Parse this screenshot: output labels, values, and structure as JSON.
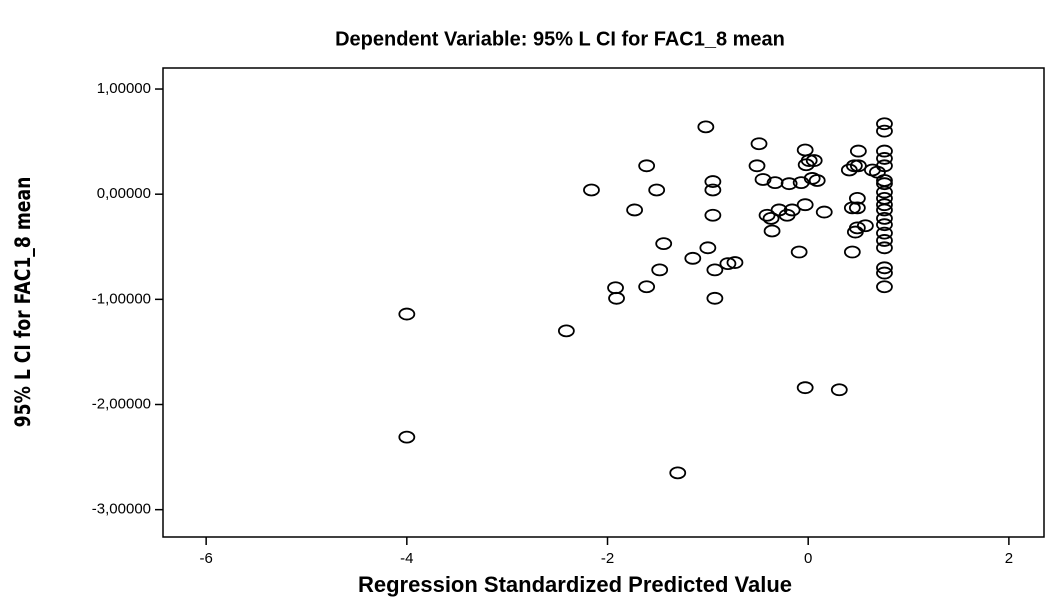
{
  "chart_data": {
    "type": "scatter",
    "title": "Dependent Variable: 95% L CI for FAC1_8 mean",
    "x_label": "Regression Standardized Predicted Value",
    "y_label": "95% L CI for FAC1_8 mean",
    "xlim": [
      -6.43,
      2.35
    ],
    "ylim": [
      -3.26,
      1.2
    ],
    "xticks": [
      -6,
      -4,
      -2,
      0,
      2
    ],
    "yticks": [
      {
        "value": 1,
        "label": "1,00000"
      },
      {
        "value": 0,
        "label": "0,00000"
      },
      {
        "value": -1,
        "label": "-1,00000"
      },
      {
        "value": -2,
        "label": "-2,00000"
      },
      {
        "value": -3,
        "label": "-3,00000"
      }
    ],
    "color": "#000000",
    "x": [
      -4,
      -4,
      -2.41,
      -2.16,
      -1.92,
      -1.91,
      -1.73,
      -1.61,
      -1.61,
      -1.51,
      -1.48,
      -1.44,
      -1.3,
      -1.15,
      -1.02,
      -1.0,
      -0.95,
      -0.95,
      -0.95,
      -0.93,
      -0.93,
      -0.8,
      -0.73,
      -0.49,
      -0.51,
      -0.45,
      -0.41,
      -0.37,
      -0.36,
      -0.33,
      -0.29,
      -0.21,
      -0.19,
      -0.16,
      -0.09,
      -0.07,
      -0.03,
      -0.03,
      -0.03,
      -0.02,
      0.01,
      0.06,
      0.04,
      0.09,
      0.16,
      0.31,
      0.41,
      0.46,
      0.44,
      0.44,
      0.47,
      0.49,
      0.49,
      0.49,
      0.5,
      0.5,
      0.57,
      0.64,
      0.69,
      0.76,
      0.76,
      0.76,
      0.76,
      0.76,
      0.76,
      0.76,
      0.76,
      0.76,
      0.76,
      0.76,
      0.76,
      0.76,
      0.76,
      0.76,
      0.76,
      0.76,
      0.76,
      0.76
    ],
    "values": [
      -1.14,
      -2.31,
      -1.3,
      0.04,
      -0.89,
      -0.99,
      -0.15,
      0.27,
      -0.88,
      0.04,
      -0.72,
      -0.47,
      -2.65,
      -0.61,
      0.64,
      -0.51,
      0.12,
      0.04,
      -0.2,
      -0.99,
      -0.72,
      -0.66,
      -0.65,
      0.48,
      0.27,
      0.14,
      -0.2,
      -0.23,
      -0.35,
      0.11,
      -0.15,
      -0.2,
      0.1,
      -0.15,
      -0.55,
      0.11,
      0.42,
      -1.84,
      -0.1,
      0.28,
      0.32,
      0.32,
      0.15,
      0.13,
      -0.17,
      -1.86,
      0.23,
      0.27,
      -0.55,
      -0.13,
      -0.36,
      -0.32,
      -0.13,
      -0.04,
      0.41,
      0.27,
      -0.3,
      0.23,
      0.21,
      0.67,
      0.6,
      0.41,
      0.34,
      0.27,
      0.13,
      0.1,
      0.02,
      -0.04,
      -0.1,
      -0.15,
      -0.23,
      -0.29,
      -0.37,
      -0.44,
      -0.51,
      -0.7,
      -0.75,
      -0.88
    ]
  }
}
